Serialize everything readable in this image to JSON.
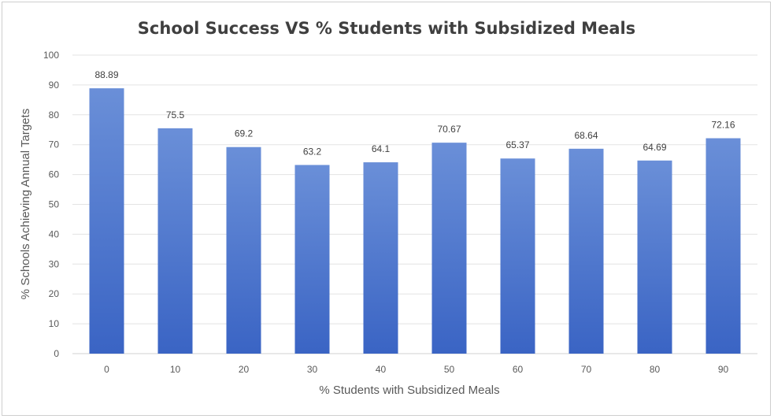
{
  "chart_data": {
    "type": "bar",
    "title": "School Success VS % Students with Subsidized Meals",
    "xlabel": "% Students with Subsidized Meals",
    "ylabel": "% Schools Achieving Annual Targets",
    "categories": [
      "0",
      "10",
      "20",
      "30",
      "40",
      "50",
      "60",
      "70",
      "80",
      "90"
    ],
    "values": [
      88.89,
      75.5,
      69.2,
      63.2,
      64.1,
      70.67,
      65.37,
      68.64,
      64.69,
      72.16
    ],
    "data_labels": [
      "88.89",
      "75.5",
      "69.2",
      "63.2",
      "64.1",
      "70.67",
      "65.37",
      "68.64",
      "64.69",
      "72.16"
    ],
    "ylim": [
      0,
      100
    ],
    "yticks": [
      "0",
      "10",
      "20",
      "30",
      "40",
      "50",
      "60",
      "70",
      "80",
      "90",
      "100"
    ],
    "grid": true,
    "legend": "none",
    "colors": {
      "bar_top": "#6a8fd8",
      "bar_bottom": "#3a64c4"
    }
  }
}
